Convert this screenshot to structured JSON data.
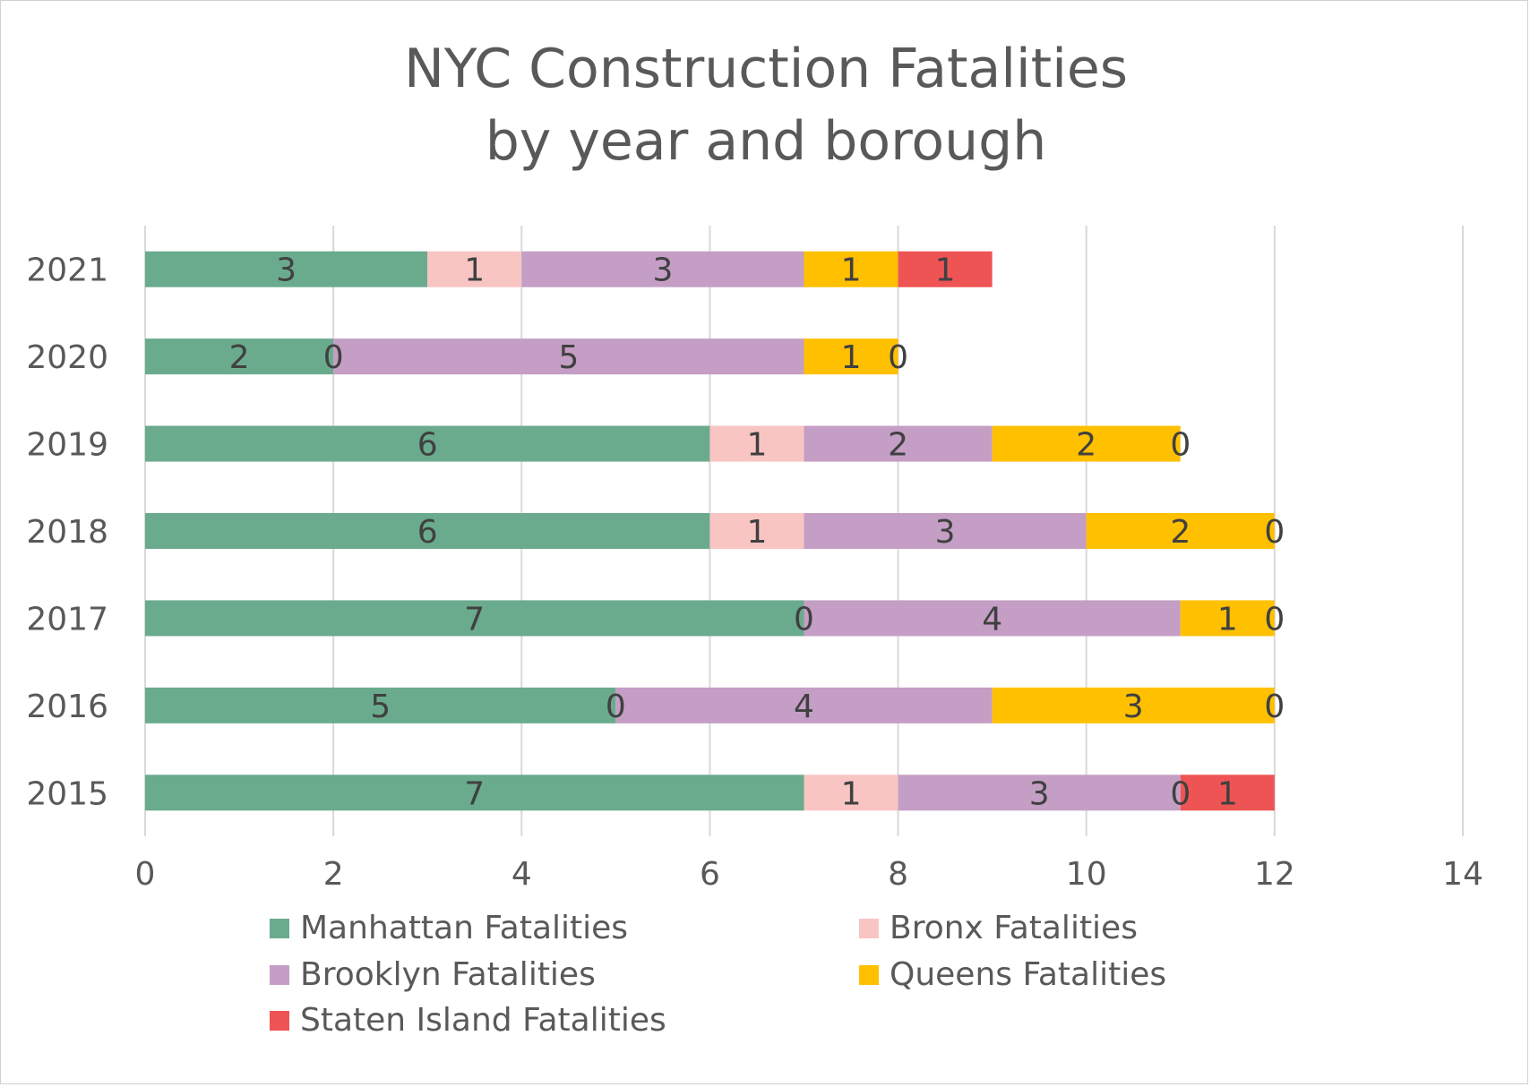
{
  "chart_data": {
    "type": "bar",
    "orientation": "horizontal",
    "stacked": true,
    "title": [
      "NYC Construction Fatalities",
      "by year and borough"
    ],
    "xlabel": "",
    "ylabel": "",
    "xlim": [
      0,
      14
    ],
    "x_ticks": [
      0,
      2,
      4,
      6,
      8,
      10,
      12,
      14
    ],
    "grid": "vertical",
    "legend_position": "bottom",
    "categories": [
      "2021",
      "2020",
      "2019",
      "2018",
      "2017",
      "2016",
      "2015"
    ],
    "series": [
      {
        "name": "Manhattan Fatalities",
        "color": "#6aab8e",
        "values": [
          3,
          2,
          6,
          6,
          7,
          5,
          7
        ]
      },
      {
        "name": "Bronx Fatalities",
        "color": "#f8c5c3",
        "values": [
          1,
          0,
          1,
          1,
          0,
          0,
          1
        ]
      },
      {
        "name": "Brooklyn Fatalities",
        "color": "#c49ec5",
        "values": [
          3,
          5,
          2,
          3,
          4,
          4,
          3
        ]
      },
      {
        "name": "Queens Fatalities",
        "color": "#ffc000",
        "values": [
          1,
          1,
          2,
          2,
          1,
          3,
          0
        ]
      },
      {
        "name": "Staten Island Fatalities",
        "color": "#ef5454",
        "values": [
          1,
          0,
          0,
          0,
          0,
          0,
          1
        ]
      }
    ]
  }
}
